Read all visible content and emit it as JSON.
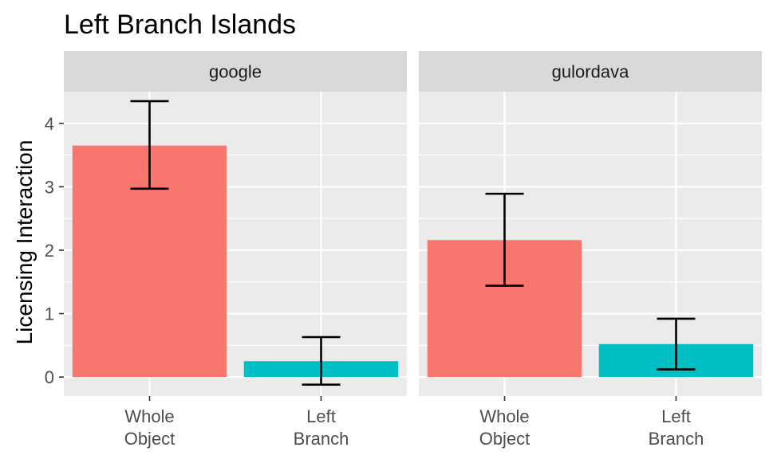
{
  "chart_data": {
    "type": "bar",
    "title": "Left Branch Islands",
    "ylabel": "Licensing Interaction",
    "xlabel": "",
    "ylim": [
      -0.3,
      4.5
    ],
    "yticks": [
      0,
      1,
      2,
      3,
      4
    ],
    "grid": true,
    "categories": [
      {
        "line1": "Whole",
        "line2": "Object"
      },
      {
        "line1": "Left",
        "line2": "Branch"
      }
    ],
    "category_colors": [
      "#F8766D",
      "#00BFC4"
    ],
    "panels": [
      {
        "name": "google",
        "values": [
          3.65,
          0.25
        ],
        "error_low": [
          2.97,
          -0.12
        ],
        "error_high": [
          4.35,
          0.63
        ]
      },
      {
        "name": "gulordava",
        "values": [
          2.16,
          0.52
        ],
        "error_low": [
          1.44,
          0.12
        ],
        "error_high": [
          2.89,
          0.92
        ]
      }
    ]
  }
}
